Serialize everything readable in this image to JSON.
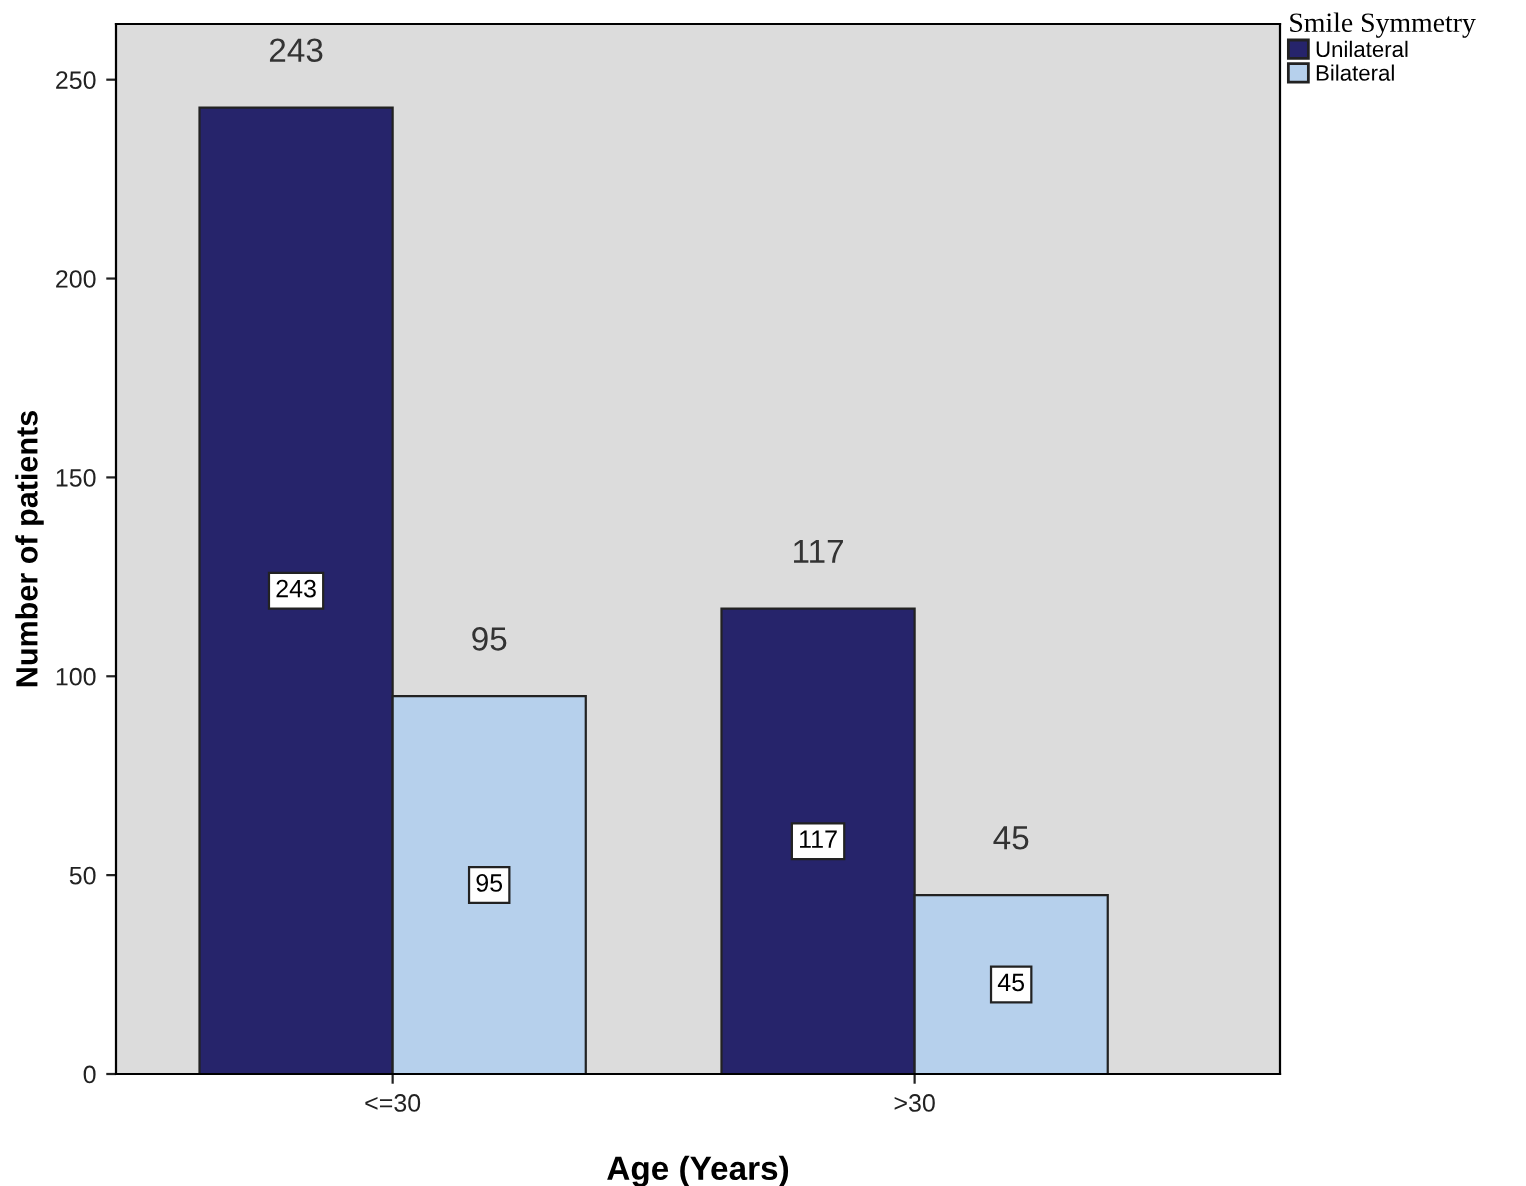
{
  "chart_data": {
    "type": "bar",
    "xlabel": "Age (Years)",
    "ylabel": "Number of patients",
    "legend_title": "Smile Symmetry",
    "categories": [
      "<=30",
      ">30"
    ],
    "series": [
      {
        "name": "Unilateral",
        "color": "#26246b",
        "values": [
          243,
          117
        ]
      },
      {
        "name": "Bilateral",
        "color": "#b6d0ec",
        "values": [
          95,
          45
        ]
      }
    ],
    "annotations": [
      "243",
      "95",
      "117",
      "45"
    ],
    "ylim": [
      0,
      264
    ],
    "yticks": [
      0,
      50,
      100,
      150,
      200,
      250
    ],
    "grid": false,
    "legend": "top right",
    "data_labels": true
  }
}
